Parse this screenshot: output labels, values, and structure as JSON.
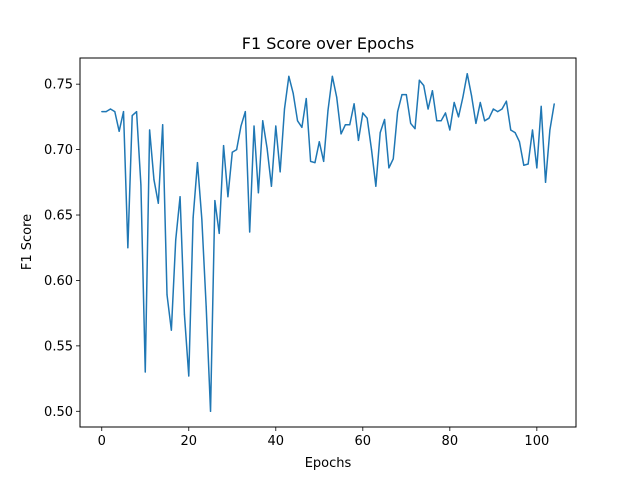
{
  "chart_data": {
    "type": "line",
    "title": "F1 Score over Epochs",
    "xlabel": "Epochs",
    "ylabel": "F1 Score",
    "xlim": [
      -5,
      109
    ],
    "ylim": [
      0.488,
      0.77
    ],
    "xticks": [
      0,
      20,
      40,
      60,
      80,
      100
    ],
    "yticks": [
      0.5,
      0.55,
      0.6,
      0.65,
      0.7,
      0.75
    ],
    "ytick_labels": [
      "0.50",
      "0.55",
      "0.60",
      "0.65",
      "0.70",
      "0.75"
    ],
    "grid": false,
    "legend": "none",
    "series_color": "#1f77b4",
    "series": [
      {
        "x": [
          0,
          1,
          2,
          3,
          4,
          5,
          6,
          7,
          8,
          9,
          10,
          11,
          12,
          13,
          14,
          15,
          16,
          17,
          18,
          19,
          20,
          21,
          22,
          23,
          24,
          25,
          26,
          27,
          28,
          29,
          30,
          31,
          32,
          33,
          34,
          35,
          36,
          37,
          38,
          39,
          40,
          41,
          42,
          43,
          44,
          45,
          46,
          47,
          48,
          49,
          50,
          51,
          52,
          53,
          54,
          55,
          56,
          57,
          58,
          59,
          60,
          61,
          62,
          63,
          64,
          65,
          66,
          67,
          68,
          69,
          70,
          71,
          72,
          73,
          74,
          75,
          76,
          77,
          78,
          79,
          80,
          81,
          82,
          83,
          84,
          85,
          86,
          87,
          88,
          89,
          90,
          91,
          92,
          93,
          94,
          95,
          96,
          97,
          98,
          99,
          100,
          101,
          102,
          103,
          104
        ],
        "values": [
          0.729,
          0.729,
          0.731,
          0.729,
          0.714,
          0.729,
          0.625,
          0.726,
          0.729,
          0.673,
          0.53,
          0.715,
          0.677,
          0.659,
          0.719,
          0.589,
          0.562,
          0.631,
          0.664,
          0.574,
          0.527,
          0.648,
          0.69,
          0.647,
          0.58,
          0.5,
          0.661,
          0.636,
          0.703,
          0.664,
          0.698,
          0.7,
          0.718,
          0.729,
          0.637,
          0.718,
          0.667,
          0.722,
          0.701,
          0.672,
          0.718,
          0.683,
          0.731,
          0.756,
          0.743,
          0.722,
          0.717,
          0.739,
          0.691,
          0.69,
          0.706,
          0.691,
          0.73,
          0.756,
          0.74,
          0.712,
          0.719,
          0.719,
          0.735,
          0.707,
          0.728,
          0.724,
          0.7,
          0.672,
          0.713,
          0.723,
          0.686,
          0.693,
          0.729,
          0.742,
          0.742,
          0.72,
          0.716,
          0.753,
          0.749,
          0.731,
          0.745,
          0.722,
          0.722,
          0.728,
          0.715,
          0.736,
          0.725,
          0.74,
          0.758,
          0.741,
          0.72,
          0.736,
          0.722,
          0.724,
          0.731,
          0.729,
          0.731,
          0.737,
          0.715,
          0.713,
          0.706,
          0.688,
          0.689,
          0.715,
          0.686,
          0.733,
          0.675,
          0.715,
          0.735
        ]
      }
    ]
  }
}
